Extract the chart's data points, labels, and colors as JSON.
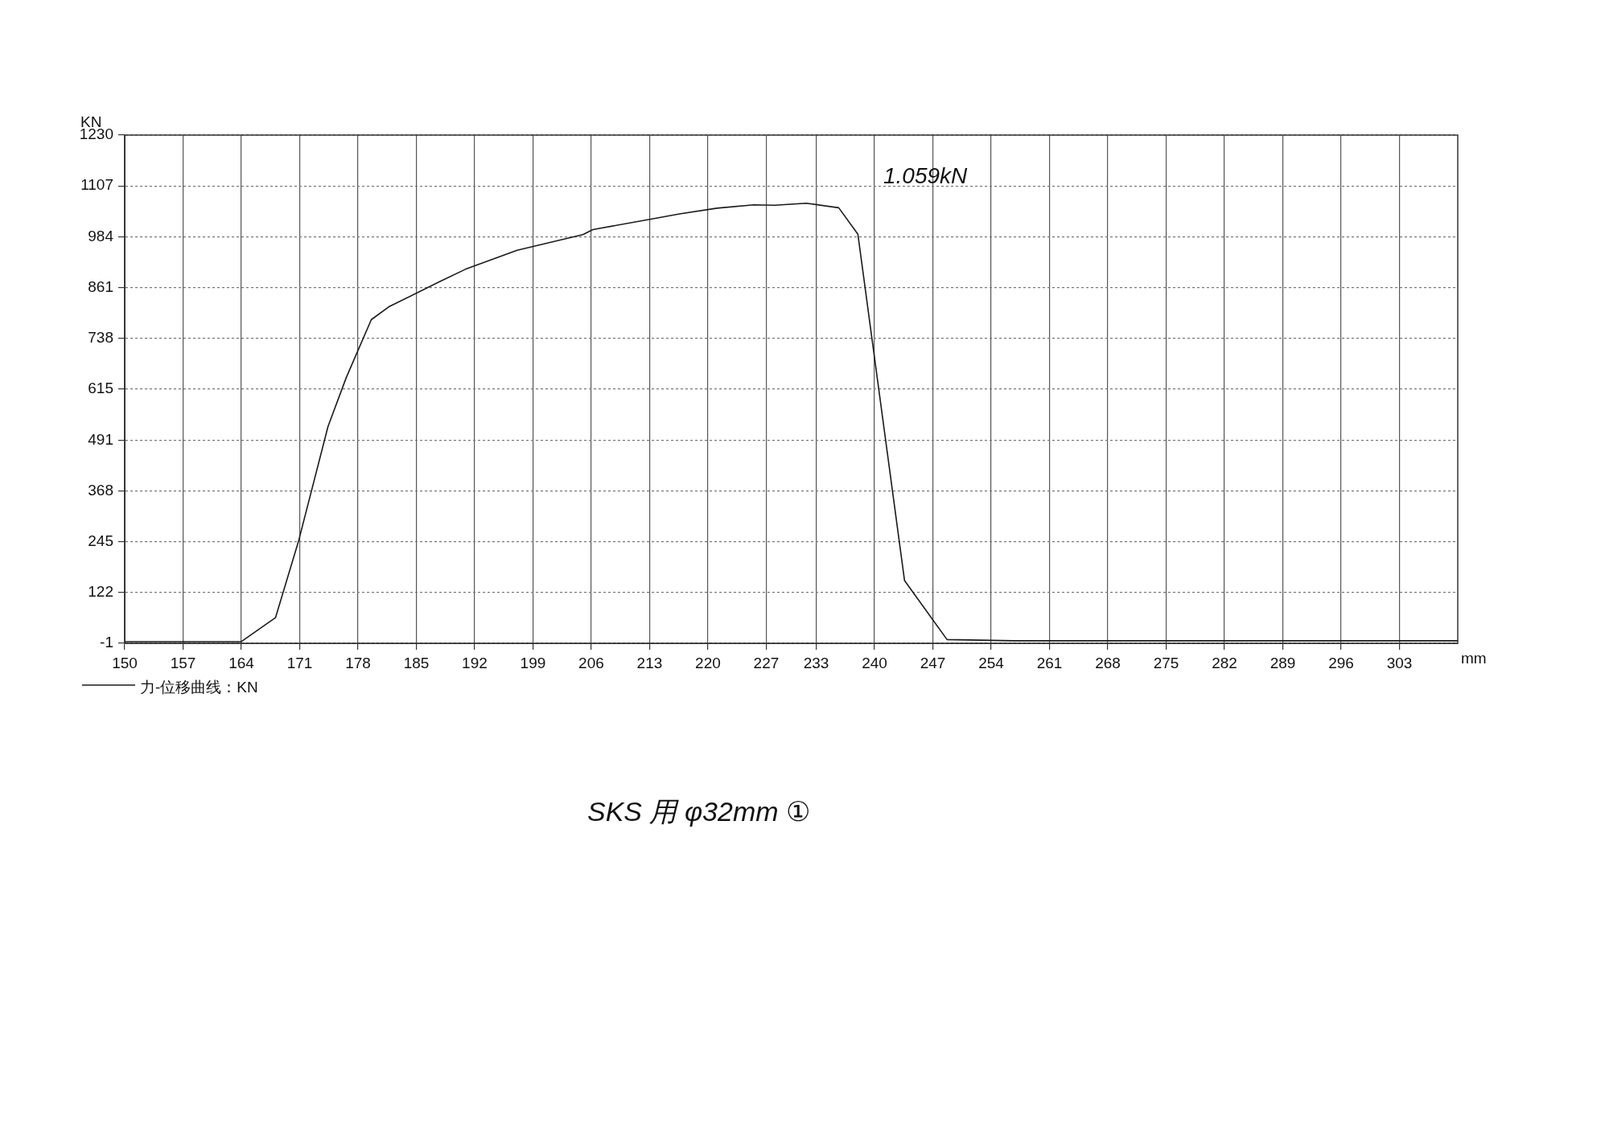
{
  "chart_data": {
    "type": "line",
    "xlabel": "mm",
    "ylabel": "KN",
    "annotations": [
      "1.059kN",
      "SKS 用 φ32mm ①"
    ],
    "series": [
      {
        "name": "力-位移曲线：KN",
        "color": "#1a1a1a",
        "x": [
          150,
          164,
          168.1,
          170.9,
          174.4,
          176.6,
          179.6,
          181.7,
          187.7,
          190.9,
          197.1,
          205,
          206.2,
          214.1,
          216.6,
          221.1,
          225.5,
          228,
          231.8,
          235.7,
          238,
          243.6,
          248.7,
          256.7,
          310
        ],
        "values": [
          3,
          3,
          61,
          249,
          524,
          643,
          783,
          814,
          874,
          905,
          951,
          989,
          1001,
          1030,
          1039,
          1053,
          1061,
          1060,
          1065,
          1054,
          990,
          151,
          8,
          5,
          5
        ]
      }
    ],
    "xlim": [
      150,
      310
    ],
    "xticks": [
      150,
      157,
      164,
      171,
      178,
      185,
      192,
      199,
      206,
      213,
      220,
      227,
      233,
      240,
      247,
      254,
      261,
      268,
      275,
      282,
      289,
      296,
      303
    ],
    "ylim": [
      -1,
      1230
    ],
    "yticks": [
      -1,
      122,
      245,
      368,
      491,
      615,
      738,
      861,
      984,
      1107,
      1230
    ],
    "grid": true,
    "legend": "bottom left",
    "marker": "none",
    "line_style": "solid"
  }
}
